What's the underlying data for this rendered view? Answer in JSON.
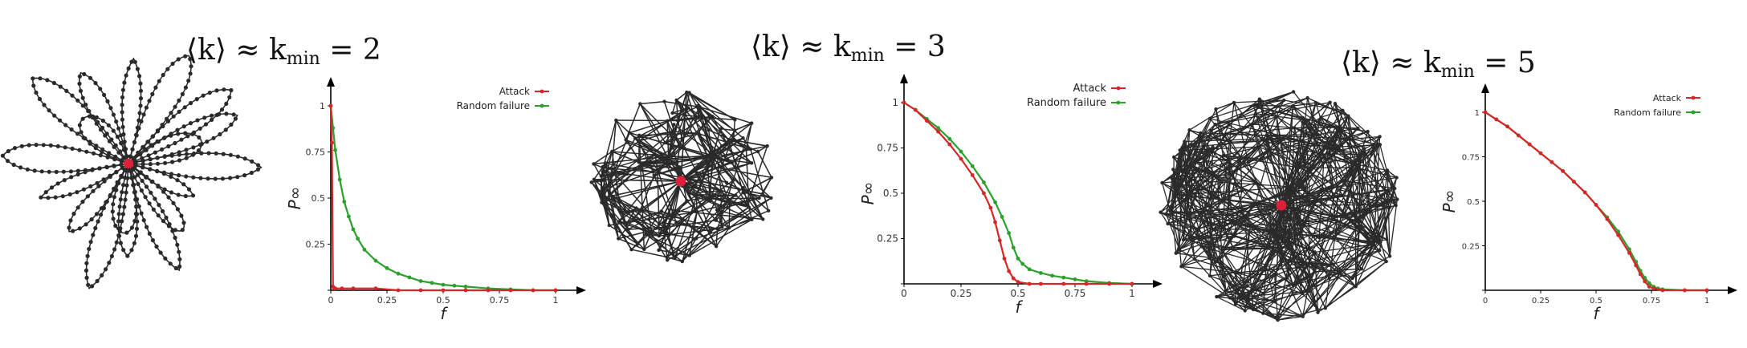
{
  "titles": [
    {
      "lhs": "⟨k⟩ ≈ k",
      "sub": "min",
      "rhs": " = 2"
    },
    {
      "lhs": "⟨k⟩ ≈ k",
      "sub": "min",
      "rhs": " = 3"
    },
    {
      "lhs": "⟨k⟩ ≈ k",
      "sub": "min",
      "rhs": " = 5"
    }
  ],
  "colors": {
    "attack": "#d62728",
    "random": "#2ca02c",
    "network_edge": "#2a2a2a",
    "node": "#2a2a2a",
    "hub": "#e0203a"
  },
  "networks": [
    {
      "type": "star-loops",
      "avg_degree_label": "2"
    },
    {
      "type": "dense",
      "avg_degree_label": "3"
    },
    {
      "type": "dense",
      "avg_degree_label": "5"
    }
  ],
  "chart_data": [
    {
      "type": "line",
      "xlabel": "f",
      "ylabel": "P∞",
      "xlim": [
        0,
        1
      ],
      "ylim": [
        0,
        1
      ],
      "xticks": [
        "0",
        "0.25",
        "0.5",
        "0.75",
        "1"
      ],
      "yticks": [
        "0",
        "0.25",
        "0.5",
        "0.75",
        "1"
      ],
      "legend": "top-right",
      "series": [
        {
          "name": "Attack",
          "x": [
            0,
            0.005,
            0.01,
            0.015,
            0.02,
            0.05,
            0.1,
            0.2,
            0.3,
            0.4,
            0.5,
            0.6,
            0.7,
            0.8,
            0.9,
            1.0
          ],
          "y": [
            1.0,
            0.8,
            0.02,
            0.01,
            0.01,
            0.01,
            0.01,
            0.01,
            0.0,
            0.0,
            0.0,
            0.0,
            0.0,
            0.0,
            0.0,
            0.0
          ]
        },
        {
          "name": "Random failure",
          "x": [
            0,
            0.01,
            0.02,
            0.04,
            0.06,
            0.08,
            0.1,
            0.12,
            0.15,
            0.2,
            0.25,
            0.3,
            0.35,
            0.4,
            0.45,
            0.5,
            0.55,
            0.6,
            0.7,
            0.8,
            0.9,
            1.0
          ],
          "y": [
            1.0,
            0.88,
            0.76,
            0.6,
            0.48,
            0.4,
            0.33,
            0.28,
            0.22,
            0.16,
            0.12,
            0.09,
            0.07,
            0.05,
            0.04,
            0.03,
            0.025,
            0.02,
            0.01,
            0.005,
            0.0,
            0.0
          ]
        }
      ]
    },
    {
      "type": "line",
      "xlabel": "f",
      "ylabel": "P∞",
      "xlim": [
        0,
        1
      ],
      "ylim": [
        0,
        1
      ],
      "xticks": [
        "0",
        "0.25",
        "0.5",
        "0.75",
        "1"
      ],
      "yticks": [
        "0",
        "0.25",
        "0.5",
        "0.75",
        "1"
      ],
      "legend": "top-right",
      "series": [
        {
          "name": "Attack",
          "x": [
            0,
            0.05,
            0.1,
            0.15,
            0.2,
            0.25,
            0.3,
            0.35,
            0.38,
            0.4,
            0.42,
            0.44,
            0.46,
            0.48,
            0.5,
            0.55,
            0.6,
            0.7,
            0.8,
            0.9,
            1.0
          ],
          "y": [
            1.0,
            0.96,
            0.9,
            0.84,
            0.77,
            0.69,
            0.6,
            0.5,
            0.42,
            0.34,
            0.24,
            0.14,
            0.07,
            0.03,
            0.01,
            0.0,
            0.0,
            0.0,
            0.0,
            0.0,
            0.0
          ]
        },
        {
          "name": "Random failure",
          "x": [
            0,
            0.05,
            0.1,
            0.15,
            0.2,
            0.25,
            0.3,
            0.35,
            0.4,
            0.43,
            0.46,
            0.48,
            0.5,
            0.52,
            0.55,
            0.6,
            0.65,
            0.7,
            0.75,
            0.8,
            0.9,
            1.0
          ],
          "y": [
            1.0,
            0.96,
            0.91,
            0.86,
            0.8,
            0.73,
            0.65,
            0.56,
            0.45,
            0.37,
            0.28,
            0.2,
            0.14,
            0.11,
            0.08,
            0.06,
            0.045,
            0.035,
            0.025,
            0.015,
            0.005,
            0.0
          ]
        }
      ]
    },
    {
      "type": "line",
      "xlabel": "f",
      "ylabel": "P∞",
      "xlim": [
        0,
        1
      ],
      "ylim": [
        0,
        1
      ],
      "xticks": [
        "0",
        "0.25",
        "0.5",
        "0.75",
        "1"
      ],
      "yticks": [
        "0",
        "0.25",
        "0.5",
        "0.75",
        "1"
      ],
      "legend": "top-right",
      "series": [
        {
          "name": "Attack",
          "x": [
            0,
            0.05,
            0.1,
            0.15,
            0.2,
            0.25,
            0.3,
            0.35,
            0.4,
            0.45,
            0.5,
            0.55,
            0.6,
            0.65,
            0.68,
            0.7,
            0.72,
            0.74,
            0.76,
            0.8,
            0.9,
            1.0
          ],
          "y": [
            1.0,
            0.96,
            0.92,
            0.87,
            0.82,
            0.77,
            0.72,
            0.67,
            0.61,
            0.55,
            0.48,
            0.4,
            0.31,
            0.21,
            0.14,
            0.09,
            0.05,
            0.02,
            0.01,
            0.0,
            0.0,
            0.0
          ]
        },
        {
          "name": "Random failure",
          "x": [
            0,
            0.05,
            0.1,
            0.15,
            0.2,
            0.25,
            0.3,
            0.35,
            0.4,
            0.45,
            0.5,
            0.55,
            0.6,
            0.65,
            0.68,
            0.7,
            0.72,
            0.74,
            0.76,
            0.78,
            0.8,
            0.9,
            1.0
          ],
          "y": [
            1.0,
            0.96,
            0.92,
            0.87,
            0.82,
            0.77,
            0.72,
            0.67,
            0.61,
            0.55,
            0.48,
            0.41,
            0.33,
            0.23,
            0.16,
            0.11,
            0.07,
            0.04,
            0.02,
            0.01,
            0.005,
            0.0,
            0.0
          ]
        }
      ]
    }
  ]
}
